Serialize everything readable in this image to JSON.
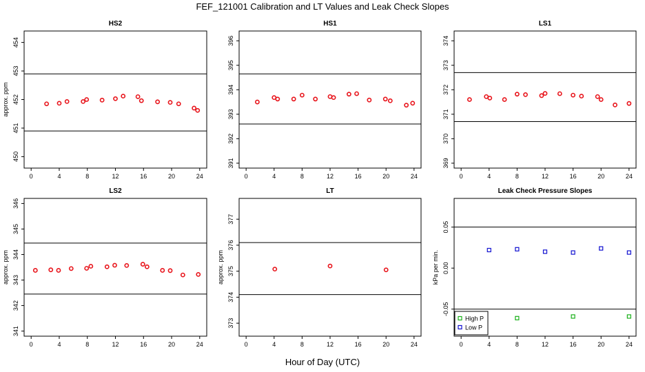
{
  "figure": {
    "title": "FEF_121001  Calibration and LT Values and Leak Check Slopes",
    "xlabel": "Hour of Day (UTC)"
  },
  "colors": {
    "red": "#e8141b",
    "blue": "#1010d0",
    "green": "#18b018",
    "line": "#000000"
  },
  "chart_data": [
    {
      "type": "scatter",
      "title": "HS2",
      "ylabel": "approx. ppm",
      "xlim": [
        -1,
        25
      ],
      "ylim": [
        449.6,
        454.4
      ],
      "xticks": [
        0,
        4,
        8,
        12,
        16,
        20,
        24
      ],
      "yticks": [
        450,
        451,
        452,
        453,
        454
      ],
      "hlines": [
        452.9,
        450.9
      ],
      "series": [
        {
          "color": "#e8141b",
          "marker": "circle",
          "x": [
            2.2,
            4.0,
            5.1,
            7.4,
            7.9,
            10.1,
            12.0,
            13.1,
            15.2,
            15.7,
            18.0,
            19.8,
            21.0,
            23.2,
            23.7
          ],
          "y": [
            451.85,
            451.87,
            451.93,
            451.93,
            452.0,
            451.98,
            452.03,
            452.12,
            452.1,
            451.96,
            451.92,
            451.9,
            451.85,
            451.7,
            451.62
          ]
        }
      ]
    },
    {
      "type": "scatter",
      "title": "HS1",
      "ylabel": "",
      "xlim": [
        -1,
        25
      ],
      "ylim": [
        390.8,
        396.4
      ],
      "xticks": [
        0,
        4,
        8,
        12,
        16,
        20,
        24
      ],
      "yticks": [
        391,
        392,
        393,
        394,
        395,
        396
      ],
      "hlines": [
        394.65,
        392.6
      ],
      "series": [
        {
          "color": "#e8141b",
          "marker": "circle",
          "x": [
            1.6,
            4.0,
            4.5,
            6.8,
            8.0,
            9.9,
            12.0,
            12.5,
            14.7,
            15.8,
            17.6,
            19.9,
            20.6,
            22.9,
            23.8
          ],
          "y": [
            393.5,
            393.68,
            393.62,
            393.62,
            393.78,
            393.62,
            393.72,
            393.68,
            393.82,
            393.84,
            393.58,
            393.62,
            393.55,
            393.37,
            393.45
          ]
        }
      ]
    },
    {
      "type": "scatter",
      "title": "LS1",
      "ylabel": "",
      "xlim": [
        -1,
        25
      ],
      "ylim": [
        368.8,
        374.4
      ],
      "xticks": [
        0,
        4,
        8,
        12,
        16,
        20,
        24
      ],
      "yticks": [
        369,
        370,
        371,
        372,
        373,
        374
      ],
      "hlines": [
        372.7,
        370.7
      ],
      "series": [
        {
          "color": "#e8141b",
          "marker": "circle",
          "x": [
            1.2,
            3.6,
            4.1,
            6.2,
            8.0,
            9.2,
            11.5,
            12.0,
            14.1,
            16.0,
            17.2,
            19.5,
            20.0,
            22.0,
            24.0
          ],
          "y": [
            371.6,
            371.72,
            371.66,
            371.6,
            371.82,
            371.8,
            371.76,
            371.85,
            371.84,
            371.78,
            371.74,
            371.72,
            371.6,
            371.38,
            371.44
          ]
        }
      ]
    },
    {
      "type": "scatter",
      "title": "LS2",
      "ylabel": "approx. ppm",
      "xlim": [
        -1,
        25
      ],
      "ylim": [
        340.8,
        346.2
      ],
      "xticks": [
        0,
        4,
        8,
        12,
        16,
        20,
        24
      ],
      "yticks": [
        341,
        342,
        343,
        344,
        345,
        346
      ],
      "hlines": [
        344.45,
        342.45
      ],
      "series": [
        {
          "color": "#e8141b",
          "marker": "circle",
          "x": [
            0.6,
            2.8,
            3.9,
            5.7,
            7.9,
            8.5,
            10.8,
            11.9,
            13.6,
            15.9,
            16.5,
            18.7,
            19.8,
            21.6,
            23.8
          ],
          "y": [
            343.38,
            343.4,
            343.38,
            343.45,
            343.46,
            343.54,
            343.52,
            343.58,
            343.57,
            343.62,
            343.52,
            343.38,
            343.37,
            343.2,
            343.22
          ]
        }
      ]
    },
    {
      "type": "scatter",
      "title": "LT",
      "ylabel": "approx. ppm",
      "xlim": [
        -1,
        25
      ],
      "ylim": [
        372.5,
        377.8
      ],
      "xticks": [
        0,
        4,
        8,
        12,
        16,
        20,
        24
      ],
      "yticks": [
        373,
        374,
        375,
        376,
        377
      ],
      "hlines": [
        376.1,
        374.1
      ],
      "series": [
        {
          "color": "#e8141b",
          "marker": "circle",
          "x": [
            4.1,
            12.0,
            20.0
          ],
          "y": [
            375.08,
            375.2,
            375.05
          ]
        }
      ]
    },
    {
      "type": "scatter",
      "title": "Leak Check Pressure Slopes",
      "ylabel": "kPa per min.",
      "xlim": [
        -1,
        25
      ],
      "ylim": [
        -0.083,
        0.085
      ],
      "xticks": [
        0,
        4,
        8,
        12,
        16,
        20,
        24
      ],
      "yticks": [
        -0.05,
        0.0,
        0.05
      ],
      "ytick_labels": [
        "-0.05",
        "0.00",
        "0.05"
      ],
      "hlines": [
        0.05,
        -0.05
      ],
      "legend": {
        "position": "bottom-left",
        "entries": [
          "High P",
          "Low P"
        ]
      },
      "series": [
        {
          "name": "High P",
          "color": "#18b018",
          "marker": "square",
          "x": [
            8.0,
            16.0,
            24.0
          ],
          "y": [
            -0.061,
            -0.059,
            -0.059
          ]
        },
        {
          "name": "Low P",
          "color": "#1010d0",
          "marker": "square",
          "x": [
            4.0,
            8.0,
            12.0,
            16.0,
            20.0,
            24.0
          ],
          "y": [
            0.022,
            0.023,
            0.02,
            0.019,
            0.024,
            0.019
          ]
        }
      ]
    }
  ]
}
